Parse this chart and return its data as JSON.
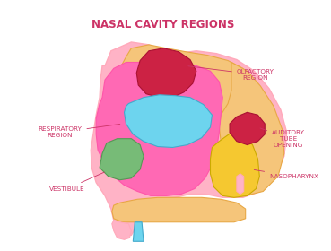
{
  "title": "NASAL CAVITY REGIONS",
  "title_color": "#cc3366",
  "title_fontsize": 8.5,
  "background_color": "#ffffff",
  "label_color": "#cc3366",
  "label_fontsize": 5.2,
  "labels": {
    "olfactory": "OLFACTORY\nREGION",
    "respiratory": "RESPIRATORY\nREGION",
    "auditory": "AUDITORY\nTUBE\nOPENING",
    "nasopharynx": "NASOPHARYNX",
    "vestibule": "VESTIBULE"
  },
  "colors": {
    "outer_shell": "#ffb3c6",
    "bone_texture": "#f5c57a",
    "respiratory": "#ff69b4",
    "olfactory_red": "#cc2244",
    "blue_region": "#6dd4ee",
    "green_vestibule": "#77bb77",
    "yellow_nasopharynx": "#f5c830",
    "blue_tube": "#6dd4ee",
    "outline_pink": "#ffaabb",
    "outline_bone": "#e8a845",
    "outline_resp": "#ff55aa",
    "outline_blue": "#44aacc",
    "outline_green": "#559955",
    "outline_yellow": "#ccaa00",
    "outline_red": "#aa1133"
  }
}
